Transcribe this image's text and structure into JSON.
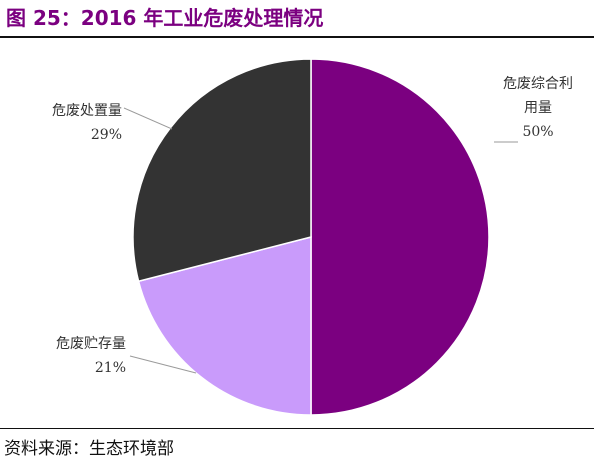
{
  "title": "图 25：2016 年工业危废处理情况",
  "source": "资料来源：生态环境部",
  "chart_data": {
    "type": "pie",
    "slices": [
      {
        "label_lines": [
          "危废综合利",
          "用量"
        ],
        "pct_text": "50%",
        "value": 50,
        "color": "#7B0080"
      },
      {
        "label_lines": [
          "危废贮存量"
        ],
        "pct_text": "21%",
        "value": 21,
        "color": "#C99BFB"
      },
      {
        "label_lines": [
          "危废处置量"
        ],
        "pct_text": "29%",
        "value": 29,
        "color": "#333333"
      }
    ],
    "start": "12 o'clock",
    "direction": "clockwise",
    "legend": "none"
  }
}
